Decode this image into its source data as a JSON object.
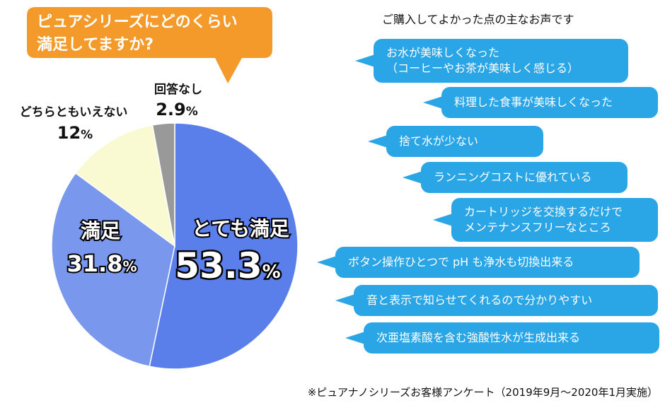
{
  "question": {
    "line1": "ピュアシリーズにどのくらい",
    "line2": "満足してますか?"
  },
  "chart_data": {
    "type": "pie",
    "slices": [
      {
        "label": "とても満足",
        "value": 53.3,
        "display": "53.3",
        "color": "#5b7fea"
      },
      {
        "label": "満足",
        "value": 31.8,
        "display": "31.8",
        "color": "#7a97ee"
      },
      {
        "label": "どちらともいえない",
        "value": 12,
        "display": "12",
        "color": "#fafad2"
      },
      {
        "label": "回答なし",
        "value": 2.9,
        "display": "2.9",
        "color": "#999999"
      }
    ],
    "unit": "%"
  },
  "voices": {
    "title": "ご購入してよかった点の主なお声です",
    "items": [
      {
        "lines": [
          "お水が美味しくなった",
          "（コーヒーやお茶が美味しく感じる）"
        ]
      },
      {
        "lines": [
          "料理した食事が美味しくなった"
        ]
      },
      {
        "lines": [
          "捨て水が少ない"
        ]
      },
      {
        "lines": [
          "ランニングコストに優れている"
        ]
      },
      {
        "lines": [
          "カートリッジを交換するだけで",
          "メンテナンスフリーなところ"
        ]
      },
      {
        "lines": [
          "ボタン操作ひとつで pH も浄水も切換出来る"
        ]
      },
      {
        "lines": [
          "音と表示で知らせてくれるので分かりやすい"
        ]
      },
      {
        "lines": [
          "次亜塩素酸を含む強酸性水が生成出来る"
        ]
      }
    ]
  },
  "footnote": "※ピュアナノシリーズお客様アンケート（2019年9月～2020年1月実施）"
}
